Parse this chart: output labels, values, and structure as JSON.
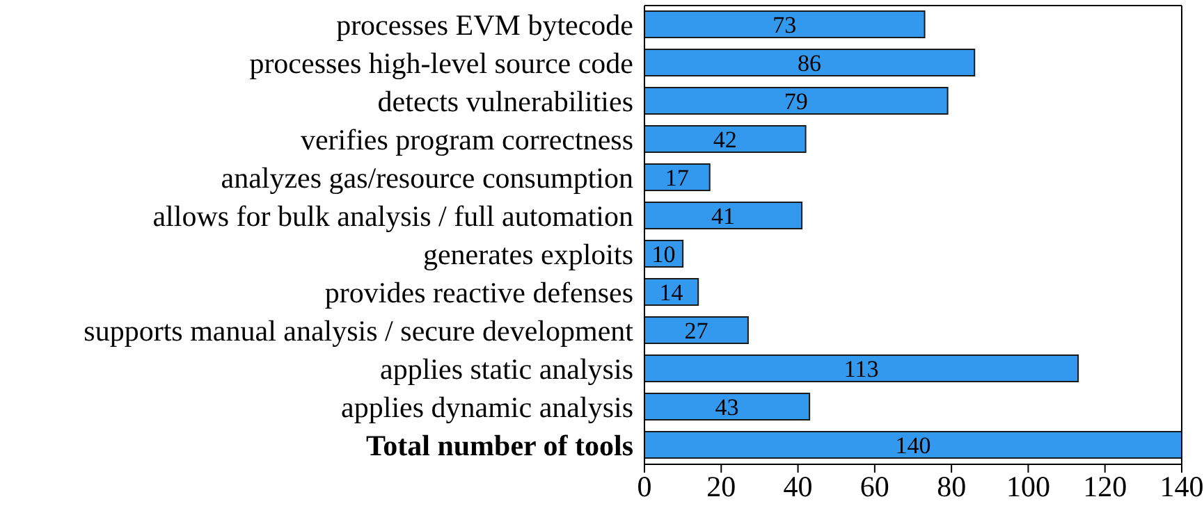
{
  "chart_data": {
    "type": "bar",
    "orientation": "horizontal",
    "categories": [
      "processes EVM bytecode",
      "processes high-level source code",
      "detects vulnerabilities",
      "verifies program correctness",
      "analyzes gas/resource consumption",
      "allows for bulk analysis / full automation",
      "generates exploits",
      "provides reactive defenses",
      "supports manual analysis / secure development",
      "applies static analysis",
      "applies dynamic analysis",
      "Total number of tools"
    ],
    "values": [
      73,
      86,
      79,
      42,
      17,
      41,
      10,
      14,
      27,
      113,
      43,
      140
    ],
    "color": "#3399ee",
    "xlim": [
      0,
      140
    ],
    "xticks": [
      0,
      20,
      40,
      60,
      80,
      100,
      120,
      140
    ],
    "data_labels": true,
    "grid": false
  }
}
